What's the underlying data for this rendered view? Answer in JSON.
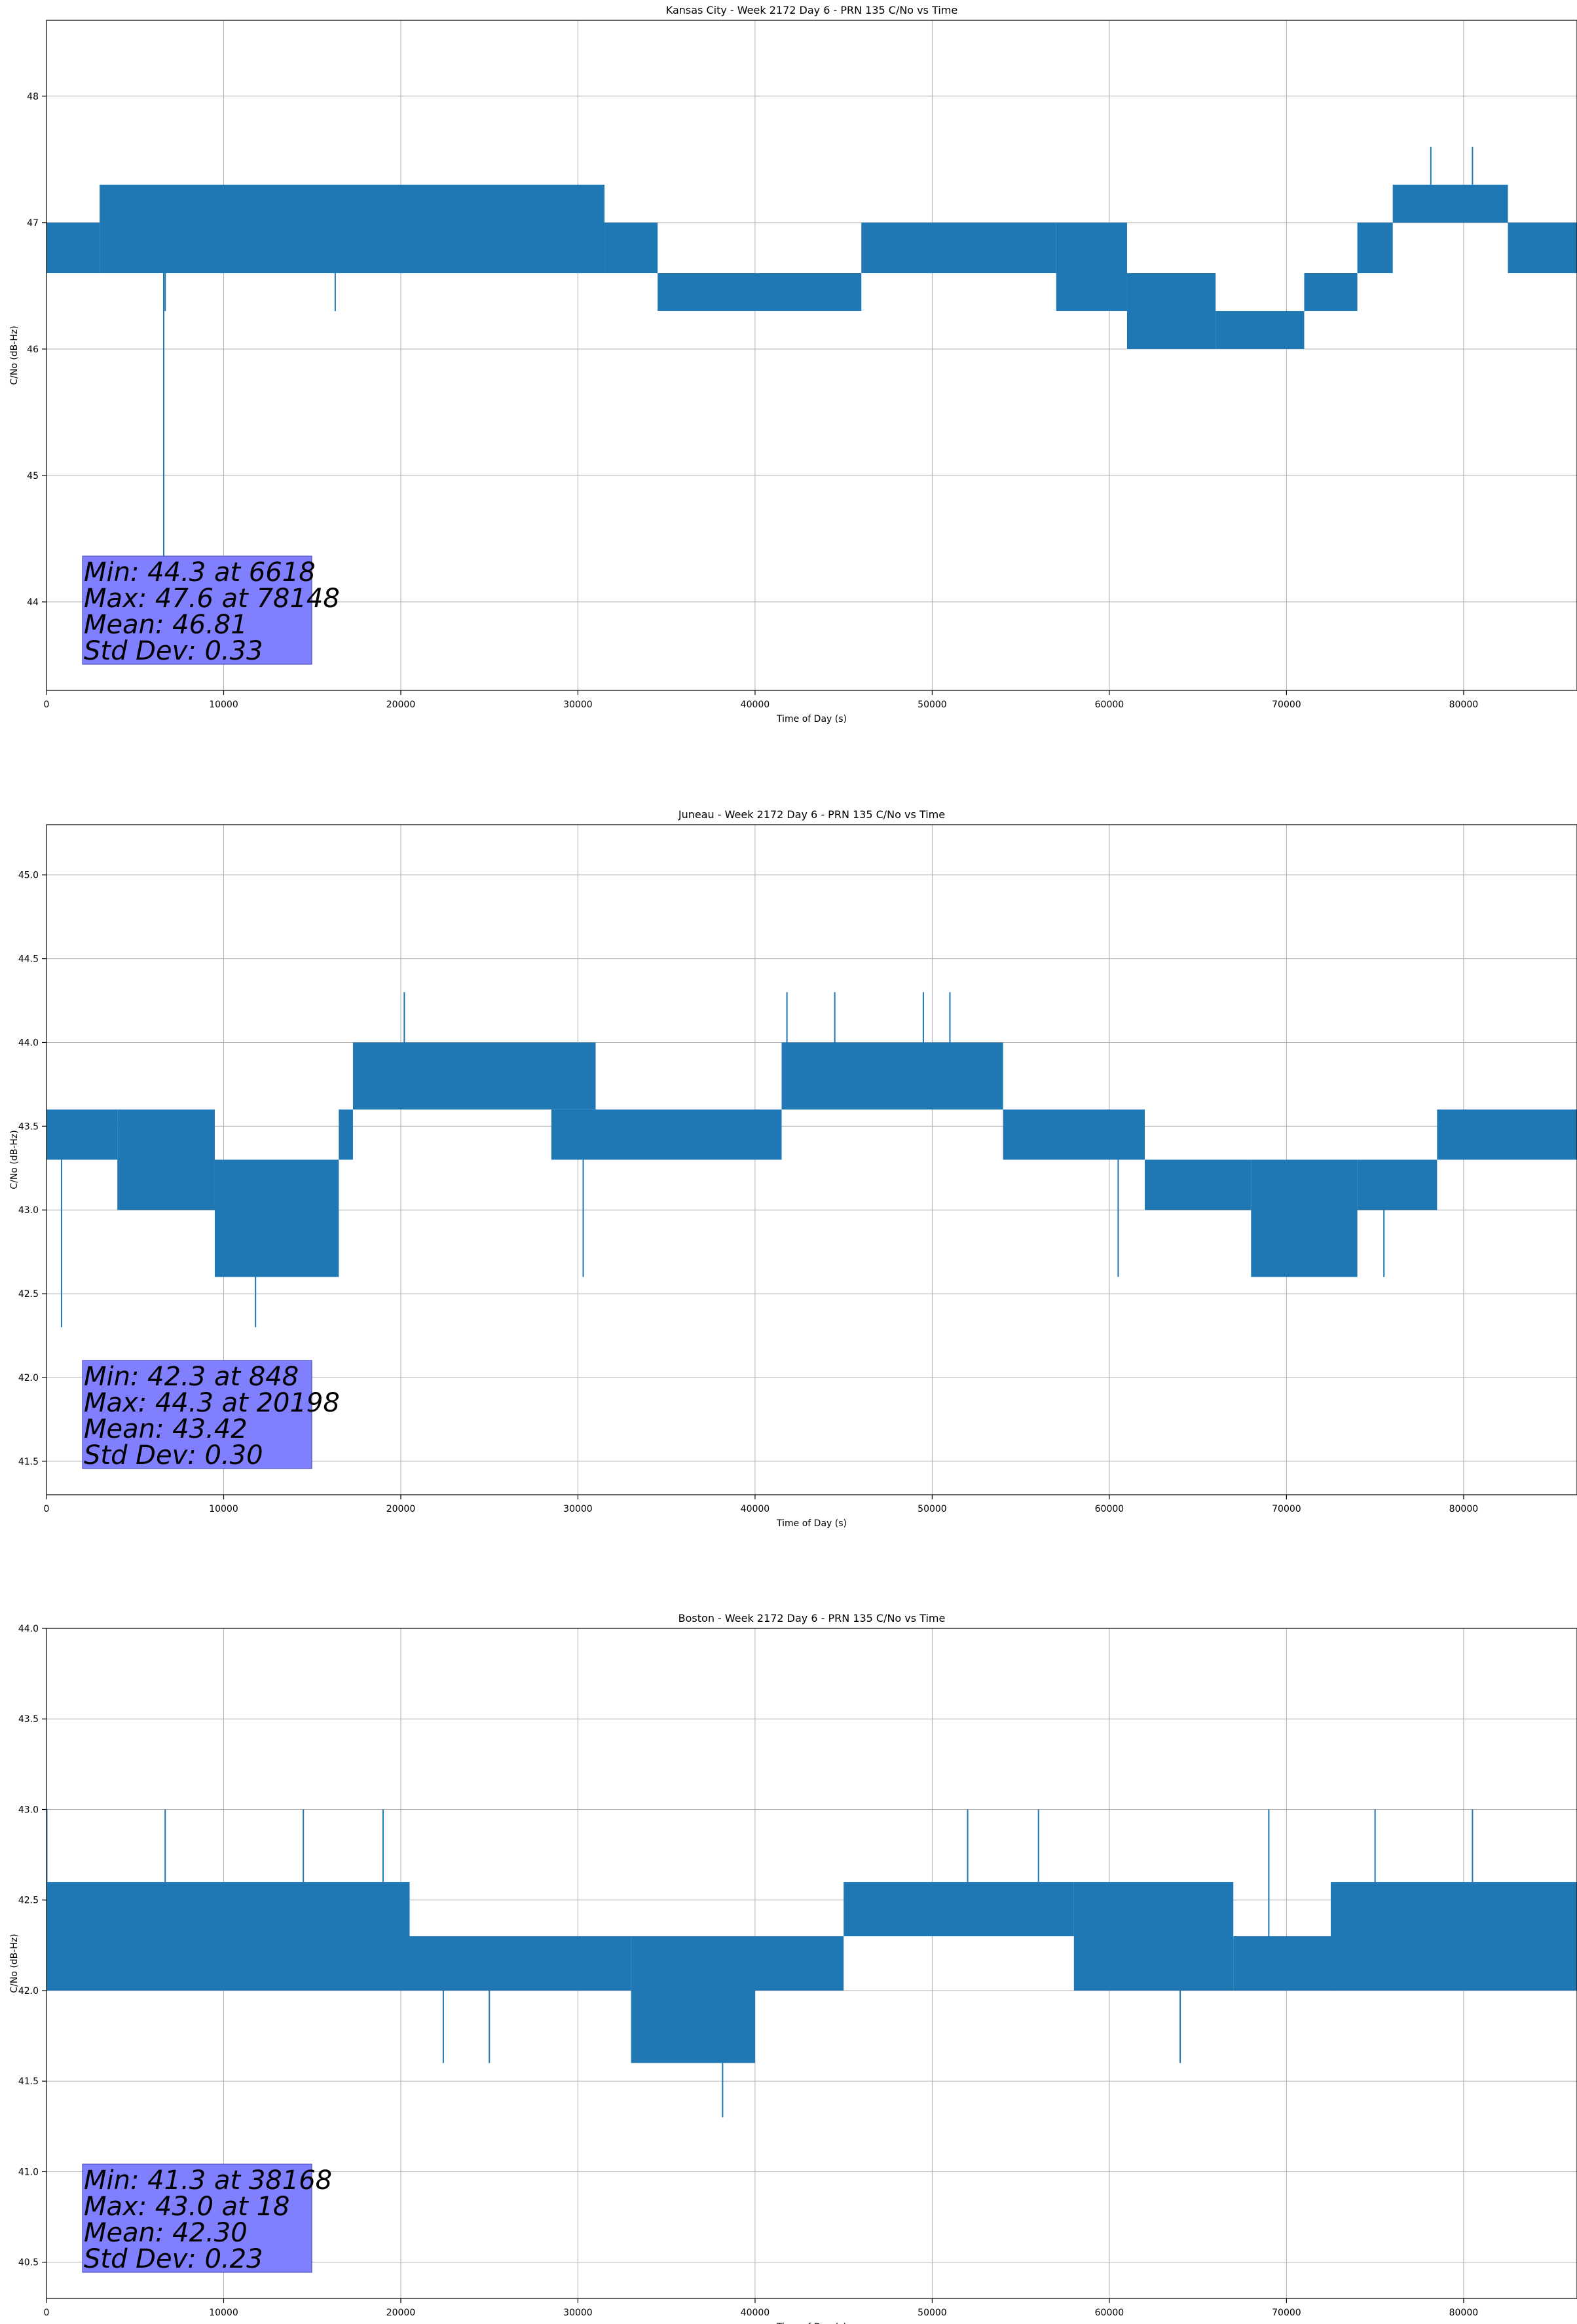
{
  "chart_data": [
    {
      "type": "line",
      "title": "Kansas City - Week 2172 Day 6 - PRN 135 C/No vs Time",
      "xlabel": "Time of Day (s)",
      "ylabel": "C/No (dB-Hz)",
      "xlim": [
        0,
        86400
      ],
      "ylim": [
        43.3,
        48.6
      ],
      "xticks": [
        0,
        10000,
        20000,
        30000,
        40000,
        50000,
        60000,
        70000,
        80000
      ],
      "yticks": [
        44,
        45,
        46,
        47,
        48
      ],
      "ytick_decimals": 0,
      "grid": true,
      "line_color": "#1f77b4",
      "stats": [
        "Min: 44.3 at 6618",
        "Max: 47.6 at 78148",
        "Mean: 46.81",
        "Std Dev: 0.33"
      ],
      "series": [
        {
          "segments": [
            {
              "x": [
                0,
                3000
              ],
              "lo": 46.6,
              "hi": 47.0
            },
            {
              "x": [
                3000,
                31500
              ],
              "lo": 46.6,
              "hi": 47.3
            },
            {
              "x": [
                31500,
                34500
              ],
              "lo": 46.6,
              "hi": 47.0
            },
            {
              "x": [
                34500,
                46000
              ],
              "lo": 46.3,
              "hi": 46.6
            },
            {
              "x": [
                46000,
                57000
              ],
              "lo": 46.6,
              "hi": 47.0
            },
            {
              "x": [
                57000,
                61000
              ],
              "lo": 46.3,
              "hi": 47.0
            },
            {
              "x": [
                61000,
                66000
              ],
              "lo": 46.0,
              "hi": 46.6
            },
            {
              "x": [
                66000,
                71000
              ],
              "lo": 46.0,
              "hi": 46.3
            },
            {
              "x": [
                71000,
                74000
              ],
              "lo": 46.3,
              "hi": 46.6
            },
            {
              "x": [
                74000,
                76000
              ],
              "lo": 46.6,
              "hi": 47.0
            },
            {
              "x": [
                76000,
                82500
              ],
              "lo": 47.0,
              "hi": 47.3
            },
            {
              "x": [
                82500,
                86400
              ],
              "lo": 46.6,
              "hi": 47.0
            }
          ],
          "spikes": [
            {
              "x": 6618,
              "y": 44.3
            },
            {
              "x": 6700,
              "y": 46.3
            },
            {
              "x": 16300,
              "y": 46.3
            },
            {
              "x": 78148,
              "y": 47.6
            },
            {
              "x": 80500,
              "y": 47.6
            }
          ]
        }
      ]
    },
    {
      "type": "line",
      "title": "Juneau - Week 2172 Day 6 - PRN 135 C/No vs Time",
      "xlabel": "Time of Day (s)",
      "ylabel": "C/No (dB-Hz)",
      "xlim": [
        0,
        86400
      ],
      "ylim": [
        41.3,
        45.3
      ],
      "xticks": [
        0,
        10000,
        20000,
        30000,
        40000,
        50000,
        60000,
        70000,
        80000
      ],
      "yticks": [
        41.5,
        42.0,
        42.5,
        43.0,
        43.5,
        44.0,
        44.5,
        45.0
      ],
      "ytick_decimals": 1,
      "grid": true,
      "line_color": "#1f77b4",
      "stats": [
        "Min: 42.3 at 848",
        "Max: 44.3 at 20198",
        "Mean: 43.42",
        "Std Dev: 0.30"
      ],
      "series": [
        {
          "segments": [
            {
              "x": [
                0,
                4000
              ],
              "lo": 43.3,
              "hi": 43.6
            },
            {
              "x": [
                4000,
                9500
              ],
              "lo": 43.0,
              "hi": 43.6
            },
            {
              "x": [
                9500,
                16500
              ],
              "lo": 42.6,
              "hi": 43.3
            },
            {
              "x": [
                16500,
                17300
              ],
              "lo": 43.3,
              "hi": 43.6
            },
            {
              "x": [
                17300,
                31000
              ],
              "lo": 43.6,
              "hi": 44.0
            },
            {
              "x": [
                28500,
                41500
              ],
              "lo": 43.3,
              "hi": 43.6
            },
            {
              "x": [
                41500,
                54000
              ],
              "lo": 43.6,
              "hi": 44.0
            },
            {
              "x": [
                54000,
                62000
              ],
              "lo": 43.3,
              "hi": 43.6
            },
            {
              "x": [
                62000,
                68000
              ],
              "lo": 43.0,
              "hi": 43.3
            },
            {
              "x": [
                68000,
                74000
              ],
              "lo": 42.6,
              "hi": 43.3
            },
            {
              "x": [
                74000,
                78500
              ],
              "lo": 43.0,
              "hi": 43.3
            },
            {
              "x": [
                78500,
                86400
              ],
              "lo": 43.3,
              "hi": 43.6
            }
          ],
          "spikes": [
            {
              "x": 848,
              "y": 42.3
            },
            {
              "x": 11800,
              "y": 42.3
            },
            {
              "x": 20198,
              "y": 44.3
            },
            {
              "x": 41800,
              "y": 44.3
            },
            {
              "x": 44500,
              "y": 44.3
            },
            {
              "x": 49500,
              "y": 44.3
            },
            {
              "x": 51000,
              "y": 44.3
            },
            {
              "x": 30300,
              "y": 42.6
            },
            {
              "x": 60500,
              "y": 42.6
            },
            {
              "x": 75500,
              "y": 42.6
            }
          ]
        }
      ]
    },
    {
      "type": "line",
      "title": "Boston - Week 2172 Day 6 - PRN 135 C/No vs Time",
      "xlabel": "Time of Day (s)",
      "ylabel": "C/No (dB-Hz)",
      "xlim": [
        0,
        86400
      ],
      "ylim": [
        40.3,
        44.0
      ],
      "xticks": [
        0,
        10000,
        20000,
        30000,
        40000,
        50000,
        60000,
        70000,
        80000
      ],
      "yticks": [
        40.5,
        41.0,
        41.5,
        42.0,
        42.5,
        43.0,
        43.5,
        44.0
      ],
      "ytick_decimals": 1,
      "grid": true,
      "line_color": "#1f77b4",
      "stats": [
        "Min: 41.3 at 38168",
        "Max: 43.0 at 18",
        "Mean: 42.30",
        "Std Dev: 0.23"
      ],
      "series": [
        {
          "segments": [
            {
              "x": [
                0,
                20500
              ],
              "lo": 42.0,
              "hi": 42.6
            },
            {
              "x": [
                20500,
                33000
              ],
              "lo": 42.0,
              "hi": 42.3
            },
            {
              "x": [
                33000,
                40000
              ],
              "lo": 41.6,
              "hi": 42.3
            },
            {
              "x": [
                40000,
                45000
              ],
              "lo": 42.0,
              "hi": 42.3
            },
            {
              "x": [
                45000,
                58000
              ],
              "lo": 42.3,
              "hi": 42.6
            },
            {
              "x": [
                58000,
                67000
              ],
              "lo": 42.0,
              "hi": 42.6
            },
            {
              "x": [
                67000,
                72500
              ],
              "lo": 42.0,
              "hi": 42.3
            },
            {
              "x": [
                72500,
                86400
              ],
              "lo": 42.0,
              "hi": 42.6
            }
          ],
          "spikes": [
            {
              "x": 18,
              "y": 43.0
            },
            {
              "x": 6700,
              "y": 43.0
            },
            {
              "x": 14500,
              "y": 43.0
            },
            {
              "x": 19000,
              "y": 43.0
            },
            {
              "x": 52000,
              "y": 43.0
            },
            {
              "x": 56000,
              "y": 43.0
            },
            {
              "x": 69000,
              "y": 43.0
            },
            {
              "x": 75000,
              "y": 43.0
            },
            {
              "x": 80500,
              "y": 43.0
            },
            {
              "x": 38168,
              "y": 41.3
            },
            {
              "x": 22400,
              "y": 41.6
            },
            {
              "x": 25000,
              "y": 41.6
            },
            {
              "x": 64000,
              "y": 41.6
            }
          ]
        }
      ]
    }
  ]
}
